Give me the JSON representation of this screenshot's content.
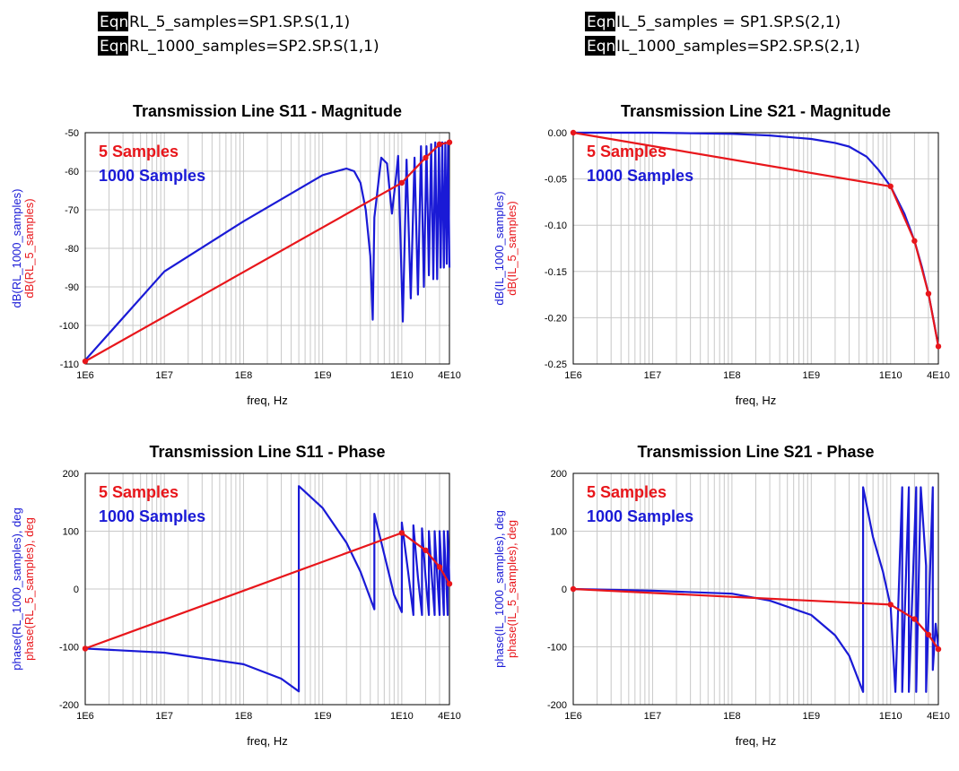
{
  "colors": {
    "red": "#e8161b",
    "blue": "#1a1ad6"
  },
  "equations": [
    {
      "badge": "Eqn",
      "text": "RL_5_samples=SP1.SP.S(1,1)"
    },
    {
      "badge": "Eqn",
      "text": "RL_1000_samples=SP2.SP.S(1,1)"
    },
    {
      "badge": "Eqn",
      "text": "IL_5_samples = SP1.SP.S(2,1)"
    },
    {
      "badge": "Eqn",
      "text": "IL_1000_samples=SP2.SP.S(2,1)"
    }
  ],
  "chart_data": [
    {
      "type": "line",
      "title": "Transmission Line S11 - Magnitude",
      "xlabel": "freq, Hz",
      "ylabel_blue": "dB(RL_1000_samples)",
      "ylabel_red": "dB(RL_5_samples)",
      "xscale": "log",
      "xlim": [
        1000000.0,
        40000000000.0
      ],
      "ylim": [
        -110,
        -50
      ],
      "xticks": [
        1000000.0,
        10000000.0,
        100000000.0,
        1000000000.0,
        10000000000.0,
        40000000000.0
      ],
      "xtick_labels": [
        "1E6",
        "1E7",
        "1E8",
        "1E9",
        "1E10",
        "4E10"
      ],
      "yticks": [
        -110,
        -100,
        -90,
        -80,
        -70,
        -60,
        -50
      ],
      "ytick_labels": [
        "-110",
        "-100",
        "-90",
        "-80",
        "-70",
        "-60",
        "-50"
      ],
      "legend": [
        "5 Samples",
        "1000 Samples"
      ],
      "legend_position": "top-left",
      "grid": true,
      "series": [
        {
          "name": "5 Samples",
          "color": "red",
          "markers": true,
          "x": [
            1000000.0,
            10000000000.0,
            20000000000.0,
            30000000000.0,
            40000000000.0
          ],
          "y": [
            -109.3,
            -63,
            -56.5,
            -53,
            -52.5
          ]
        },
        {
          "name": "1000 Samples",
          "color": "blue",
          "markers": false,
          "x": [
            1000000.0,
            10000000.0,
            100000000.0,
            1000000000.0,
            2000000000.0,
            2500000000.0,
            3000000000.0,
            3500000000.0,
            4000000000.0,
            4300000000.0,
            4500000000.0,
            5500000000.0,
            6500000000.0,
            7500000000.0,
            8500000000.0,
            9000000000.0,
            10300000000.0,
            11500000000.0,
            13000000000.0,
            14500000000.0,
            16000000000.0,
            17500000000.0,
            19000000000.0,
            20500000000.0,
            22000000000.0,
            23500000000.0,
            25000000000.0,
            26500000000.0,
            28000000000.0,
            29500000000.0,
            31000000000.0,
            32500000000.0,
            34000000000.0,
            35500000000.0,
            37000000000.0,
            38500000000.0,
            40000000000.0
          ],
          "y": [
            -109,
            -86,
            -73,
            -61,
            -59.3,
            -60,
            -63,
            -70,
            -82,
            -98.5,
            -72,
            -56.5,
            -58,
            -71,
            -61,
            -56,
            -99,
            -57,
            -93,
            -56.5,
            -92,
            -53.5,
            -90,
            -53.5,
            -87,
            -53,
            -88,
            -52.5,
            -88,
            -52.5,
            -85,
            -52.5,
            -85,
            -52.5,
            -84,
            -52.5,
            -85
          ]
        }
      ]
    },
    {
      "type": "line",
      "title": "Transmission Line S21 - Magnitude",
      "xlabel": "freq, Hz",
      "ylabel_blue": "dB(IL_1000_samples)",
      "ylabel_red": "dB(IL_5_samples)",
      "xscale": "log",
      "xlim": [
        1000000.0,
        40000000000.0
      ],
      "ylim": [
        -0.25,
        0.0
      ],
      "xticks": [
        1000000.0,
        10000000.0,
        100000000.0,
        1000000000.0,
        10000000000.0,
        40000000000.0
      ],
      "xtick_labels": [
        "1E6",
        "1E7",
        "1E8",
        "1E9",
        "1E10",
        "4E10"
      ],
      "yticks": [
        -0.25,
        -0.2,
        -0.15,
        -0.1,
        -0.05,
        0.0
      ],
      "ytick_labels": [
        "-0.25",
        "-0.20",
        "-0.15",
        "-0.10",
        "-0.05",
        "0.00"
      ],
      "legend": [
        "5 Samples",
        "1000 Samples"
      ],
      "legend_position": "top-left",
      "grid": true,
      "series": [
        {
          "name": "5 Samples",
          "color": "red",
          "markers": true,
          "x": [
            1000000.0,
            10000000000.0,
            20000000000.0,
            30000000000.0,
            40000000000.0
          ],
          "y": [
            0.0,
            -0.058,
            -0.117,
            -0.174,
            -0.231
          ]
        },
        {
          "name": "1000 Samples",
          "color": "blue",
          "markers": false,
          "x": [
            1000000.0,
            10000000.0,
            100000000.0,
            300000000.0,
            1000000000.0,
            2000000000.0,
            3000000000.0,
            5000000000.0,
            7000000000.0,
            10000000000.0,
            15000000000.0,
            20000000000.0,
            25000000000.0,
            30000000000.0,
            35000000000.0,
            40000000000.0
          ],
          "y": [
            0.0,
            0.0,
            -0.0013,
            -0.003,
            -0.0068,
            -0.011,
            -0.015,
            -0.026,
            -0.04,
            -0.058,
            -0.088,
            -0.117,
            -0.146,
            -0.174,
            -0.204,
            -0.231
          ]
        }
      ]
    },
    {
      "type": "line",
      "title": "Transmission Line S11 - Phase",
      "xlabel": "freq, Hz",
      "ylabel_blue": "phase(RL_1000_samples), deg",
      "ylabel_red": "phase(RL_5_samples), deg",
      "xscale": "log",
      "xlim": [
        1000000.0,
        40000000000.0
      ],
      "ylim": [
        -200,
        200
      ],
      "xticks": [
        1000000.0,
        10000000.0,
        100000000.0,
        1000000000.0,
        10000000000.0,
        40000000000.0
      ],
      "xtick_labels": [
        "1E6",
        "1E7",
        "1E8",
        "1E9",
        "1E10",
        "4E10"
      ],
      "yticks": [
        -200,
        -100,
        0,
        100,
        200
      ],
      "ytick_labels": [
        "-200",
        "-100",
        "0",
        "100",
        "200"
      ],
      "legend": [
        "5 Samples",
        "1000 Samples"
      ],
      "legend_position": "top-left",
      "grid": true,
      "series": [
        {
          "name": "5 Samples",
          "color": "red",
          "markers": true,
          "x": [
            1000000.0,
            10000000000.0,
            20000000000.0,
            30000000000.0,
            40000000000.0
          ],
          "y": [
            -103,
            97,
            67,
            38,
            9
          ]
        },
        {
          "name": "1000 Samples",
          "color": "blue",
          "markers": false,
          "x": [
            1000000.0,
            10000000.0,
            100000000.0,
            300000000.0,
            500000000.0,
            500000000.0,
            1000000000.0,
            2000000000.0,
            3000000000.0,
            4500000000.0,
            4500000000.0,
            6000000000.0,
            8000000000.0,
            10000000000.0,
            10000000000.0,
            12000000000.0,
            14000000000.0,
            14000000000.0,
            16000000000.0,
            18000000000.0,
            18000000000.0,
            20000000000.0,
            22000000000.0,
            22000000000.0,
            24000000000.0,
            26000000000.0,
            26000000000.0,
            28000000000.0,
            30000000000.0,
            30000000000.0,
            32000000000.0,
            34000000000.0,
            34000000000.0,
            36000000000.0,
            38000000000.0,
            38000000000.0,
            40000000000.0
          ],
          "y": [
            -103,
            -110,
            -130,
            -155,
            -177,
            178,
            140,
            80,
            30,
            -35,
            130,
            60,
            -10,
            -40,
            115,
            30,
            -45,
            110,
            20,
            -45,
            105,
            20,
            -45,
            100,
            20,
            -45,
            100,
            25,
            -45,
            100,
            25,
            -45,
            100,
            30,
            -45,
            100,
            10
          ]
        }
      ]
    },
    {
      "type": "line",
      "title": "Transmission Line S21 - Phase",
      "xlabel": "freq, Hz",
      "ylabel_blue": "phase(IL_1000_samples), deg",
      "ylabel_red": "phase(IL_5_samples), deg",
      "xscale": "log",
      "xlim": [
        1000000.0,
        40000000000.0
      ],
      "ylim": [
        -200,
        200
      ],
      "xticks": [
        1000000.0,
        10000000.0,
        100000000.0,
        1000000000.0,
        10000000000.0,
        40000000000.0
      ],
      "xtick_labels": [
        "1E6",
        "1E7",
        "1E8",
        "1E9",
        "1E10",
        "4E10"
      ],
      "yticks": [
        -200,
        -100,
        0,
        100,
        200
      ],
      "ytick_labels": [
        "-200",
        "-100",
        "0",
        "100",
        "200"
      ],
      "legend": [
        "5 Samples",
        "1000 Samples"
      ],
      "legend_position": "top-left",
      "grid": true,
      "series": [
        {
          "name": "5 Samples",
          "color": "red",
          "markers": true,
          "x": [
            1000000.0,
            10000000000.0,
            20000000000.0,
            30000000000.0,
            40000000000.0
          ],
          "y": [
            0,
            -27,
            -52,
            -79,
            -104
          ]
        },
        {
          "name": "1000 Samples",
          "color": "blue",
          "markers": false,
          "x": [
            1000000.0,
            10000000.0,
            100000000.0,
            300000000.0,
            1000000000.0,
            2000000000.0,
            3000000000.0,
            4500000000.0,
            4500000000.0,
            6000000000.0,
            8000000000.0,
            10000000000.0,
            11500000000.0,
            14000000000.0,
            14000000000.0,
            17000000000.0,
            17000000000.0,
            21000000000.0,
            21000000000.0,
            24000000000.0,
            28000000000.0,
            28000000000.0,
            34000000000.0,
            34000000000.0,
            37000000000.0,
            40000000000.0
          ],
          "y": [
            0,
            -3,
            -8,
            -20,
            -45,
            -80,
            -115,
            -178,
            176,
            90,
            30,
            -30,
            -178,
            176,
            -178,
            176,
            -178,
            176,
            -178,
            176,
            40,
            -178,
            176,
            -140,
            -60,
            -104
          ]
        }
      ]
    }
  ]
}
